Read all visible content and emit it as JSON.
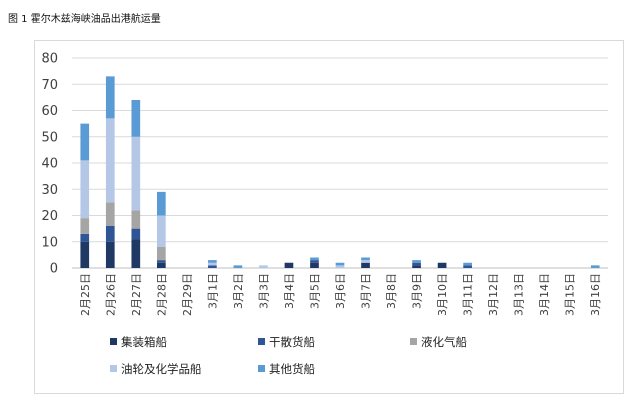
{
  "figure_title": "图 1 霍尔木兹海峡油品出港航运量",
  "chart_data": {
    "type": "bar",
    "stacked": true,
    "categories": [
      "2月25日",
      "2月26日",
      "2月27日",
      "2月28日",
      "2月29日",
      "3月1日",
      "3月2日",
      "3月3日",
      "3月4日",
      "3月5日",
      "3月6日",
      "3月7日",
      "3月8日",
      "3月9日",
      "3月10日",
      "3月11日",
      "3月12日",
      "3月13日",
      "3月14日",
      "3月15日",
      "3月16日"
    ],
    "series": [
      {
        "name": "集装箱船",
        "color": "#1f3864",
        "values": [
          10,
          10,
          11,
          2,
          0,
          0,
          0,
          0,
          2,
          2,
          0,
          2,
          0,
          1,
          2,
          0,
          0,
          0,
          0,
          0,
          0
        ]
      },
      {
        "name": "干散货船",
        "color": "#2f5597",
        "values": [
          3,
          6,
          4,
          1,
          0,
          1,
          0,
          0,
          0,
          1,
          0,
          0,
          0,
          1,
          0,
          1,
          0,
          0,
          0,
          0,
          0
        ]
      },
      {
        "name": "液化气船",
        "color": "#a5a5a5",
        "values": [
          6,
          9,
          7,
          5,
          0,
          0,
          0,
          0,
          0,
          0,
          0,
          0,
          0,
          0,
          0,
          0,
          0,
          0,
          0,
          0,
          0
        ]
      },
      {
        "name": "油轮及化学品船",
        "color": "#b4c7e7",
        "values": [
          22,
          32,
          28,
          12,
          0,
          1,
          0,
          1,
          0,
          0,
          1,
          1,
          0,
          0,
          0,
          0,
          0,
          0,
          0,
          0,
          0
        ]
      },
      {
        "name": "其他货船",
        "color": "#5b9bd5",
        "values": [
          14,
          16,
          14,
          9,
          0,
          1,
          1,
          0,
          0,
          1,
          1,
          1,
          0,
          1,
          0,
          1,
          0,
          0,
          0,
          0,
          1
        ]
      }
    ],
    "ylim": [
      0,
      80
    ],
    "yticks": [
      0,
      10,
      20,
      30,
      40,
      50,
      60,
      70,
      80
    ],
    "grid": true,
    "legend_position": "bottom"
  }
}
